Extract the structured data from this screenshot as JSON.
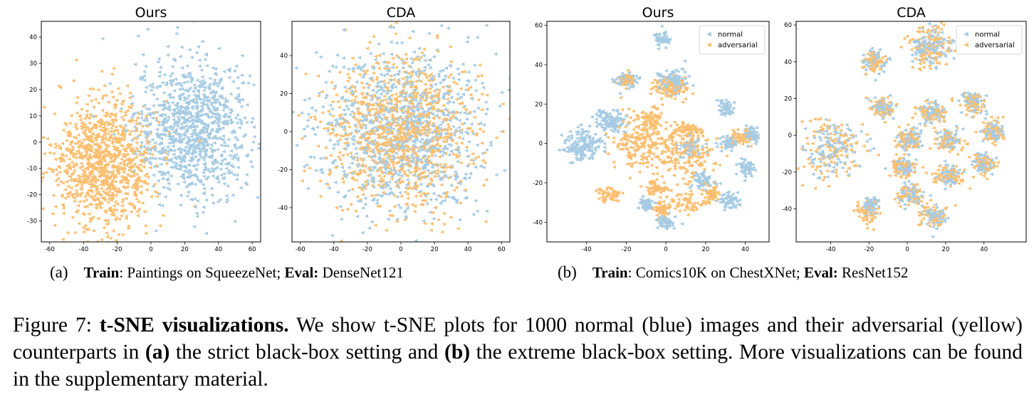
{
  "colors": {
    "normal": "#a6cbe3",
    "adversarial": "#fbbf70",
    "axes": "#000000"
  },
  "chart_data": [
    {
      "type": "scatter",
      "title": "Ours",
      "xlim": [
        -65,
        65
      ],
      "ylim": [
        -38,
        46
      ],
      "xticks": [
        "-60",
        "-40",
        "-20",
        "0",
        "20",
        "40",
        "60"
      ],
      "xtick_values": [
        -60,
        -40,
        -20,
        0,
        20,
        40,
        60
      ],
      "yticks": [
        "40",
        "30",
        "20",
        "10",
        "0",
        "-10",
        "-20",
        "-30"
      ],
      "ytick_values": [
        40,
        30,
        20,
        10,
        0,
        -10,
        -20,
        -30
      ],
      "legend": false,
      "series": [
        {
          "color_key": "normal",
          "n_points": 1000,
          "clusters": [
            {
              "cx": 25,
              "cy": 5,
              "sx": 17,
              "sy": 13,
              "w": 1
            }
          ]
        },
        {
          "color_key": "adversarial",
          "n_points": 1000,
          "clusters": [
            {
              "cx": -28,
              "cy": -8,
              "sx": 15,
              "sy": 12,
              "w": 1
            }
          ]
        }
      ]
    },
    {
      "type": "scatter",
      "title": "CDA",
      "xlim": [
        -65,
        65
      ],
      "ylim": [
        -58,
        58
      ],
      "xticks": [
        "-60",
        "-40",
        "-20",
        "0",
        "20",
        "40",
        "60"
      ],
      "xtick_values": [
        -60,
        -40,
        -20,
        0,
        20,
        40,
        60
      ],
      "yticks": [
        "40",
        "20",
        "0",
        "-20",
        "-40"
      ],
      "ytick_values": [
        40,
        20,
        0,
        -20,
        -40
      ],
      "legend": false,
      "series": [
        {
          "color_key": "normal",
          "n_points": 1000,
          "clusters": [
            {
              "cx": 0,
              "cy": 0,
              "sx": 26,
              "sy": 22,
              "w": 1
            }
          ]
        },
        {
          "color_key": "adversarial",
          "n_points": 1000,
          "clusters": [
            {
              "cx": 0,
              "cy": 0,
              "sx": 22,
              "sy": 20,
              "w": 1
            }
          ]
        }
      ]
    },
    {
      "type": "scatter",
      "title": "Ours",
      "xlim": [
        -60,
        52
      ],
      "ylim": [
        -50,
        62
      ],
      "xticks": [
        "-40",
        "-20",
        "0",
        "20",
        "40"
      ],
      "xtick_values": [
        -40,
        -20,
        0,
        20,
        40
      ],
      "yticks": [
        "60",
        "40",
        "20",
        "0",
        "-20",
        "-40"
      ],
      "ytick_values": [
        60,
        40,
        20,
        0,
        -20,
        -40
      ],
      "legend": true,
      "legend_position": "top-right",
      "legend_labels": [
        "normal",
        "adversarial"
      ],
      "series": [
        {
          "color_key": "normal",
          "n_points": 1000,
          "clusters": [
            {
              "cx": -42,
              "cy": -1,
              "sx": 5,
              "sy": 4,
              "w": 3
            },
            {
              "cx": -28,
              "cy": 11,
              "sx": 4,
              "sy": 3,
              "w": 2
            },
            {
              "cx": -20,
              "cy": 32,
              "sx": 3,
              "sy": 2,
              "w": 1
            },
            {
              "cx": -2,
              "cy": 53,
              "sx": 2,
              "sy": 2,
              "w": 1
            },
            {
              "cx": 30,
              "cy": 18,
              "sx": 2,
              "sy": 2,
              "w": 1
            },
            {
              "cx": 31,
              "cy": 0,
              "sx": 2,
              "sy": 2,
              "w": 1
            },
            {
              "cx": 43,
              "cy": 4,
              "sx": 2,
              "sy": 2,
              "w": 1
            },
            {
              "cx": 40,
              "cy": -12,
              "sx": 2,
              "sy": 2,
              "w": 1
            },
            {
              "cx": 31,
              "cy": -29,
              "sx": 3,
              "sy": 2,
              "w": 1
            },
            {
              "cx": 19,
              "cy": -19,
              "sx": 3,
              "sy": 2,
              "w": 1
            },
            {
              "cx": 0,
              "cy": -40,
              "sx": 2,
              "sy": 2,
              "w": 1
            },
            {
              "cx": -10,
              "cy": -31,
              "sx": 2,
              "sy": 2,
              "w": 1
            },
            {
              "cx": 4,
              "cy": 32,
              "sx": 4,
              "sy": 3,
              "w": 2
            },
            {
              "cx": 12,
              "cy": -2,
              "sx": 3,
              "sy": 3,
              "w": 1
            }
          ]
        },
        {
          "color_key": "adversarial",
          "n_points": 1000,
          "clusters": [
            {
              "cx": -12,
              "cy": 1,
              "sx": 8,
              "sy": 7,
              "w": 4
            },
            {
              "cx": 12,
              "cy": -6,
              "sx": 7,
              "sy": 7,
              "w": 3
            },
            {
              "cx": 2,
              "cy": 28,
              "sx": 4,
              "sy": 3,
              "w": 2
            },
            {
              "cx": -29,
              "cy": -26,
              "sx": 3,
              "sy": 2,
              "w": 1
            },
            {
              "cx": -5,
              "cy": -23,
              "sx": 3,
              "sy": 2,
              "w": 1
            },
            {
              "cx": 10,
              "cy": -30,
              "sx": 4,
              "sy": 3,
              "w": 1
            },
            {
              "cx": -8,
              "cy": 13,
              "sx": 3,
              "sy": 2,
              "w": 1
            },
            {
              "cx": 12,
              "cy": 7,
              "sx": 3,
              "sy": 2,
              "w": 1
            },
            {
              "cx": -2,
              "cy": -33,
              "sx": 2,
              "sy": 2,
              "w": 1
            },
            {
              "cx": 38,
              "cy": 3,
              "sx": 3,
              "sy": 2,
              "w": 1
            },
            {
              "cx": -20,
              "cy": 32,
              "sx": 2,
              "sy": 2,
              "w": 1
            },
            {
              "cx": 23,
              "cy": -26,
              "sx": 2,
              "sy": 2,
              "w": 1
            }
          ]
        }
      ]
    },
    {
      "type": "scatter",
      "title": "CDA",
      "xlim": [
        -58,
        62
      ],
      "ylim": [
        -58,
        62
      ],
      "xticks": [
        "-40",
        "-20",
        "0",
        "20",
        "40"
      ],
      "xtick_values": [
        -40,
        -20,
        0,
        20,
        40
      ],
      "yticks": [
        "60",
        "40",
        "20",
        "0",
        "-20",
        "-40"
      ],
      "ytick_values": [
        60,
        40,
        20,
        0,
        -20,
        -40
      ],
      "legend": true,
      "legend_position": "top-right",
      "legend_labels": [
        "normal",
        "adversarial"
      ],
      "series": [
        {
          "color_key": "normal",
          "n_points": 1000,
          "clusters": [
            {
              "cx": -40,
              "cy": -8,
              "sx": 8,
              "sy": 8,
              "w": 2
            },
            {
              "cx": -17,
              "cy": 40,
              "sx": 3,
              "sy": 3,
              "w": 1
            },
            {
              "cx": 12,
              "cy": 48,
              "sx": 5,
              "sy": 5,
              "w": 2
            },
            {
              "cx": -13,
              "cy": 15,
              "sx": 3,
              "sy": 3,
              "w": 1
            },
            {
              "cx": 13,
              "cy": 12,
              "sx": 3,
              "sy": 3,
              "w": 1
            },
            {
              "cx": 34,
              "cy": 18,
              "sx": 3,
              "sy": 3,
              "w": 1
            },
            {
              "cx": 1,
              "cy": -2,
              "sx": 3,
              "sy": 3,
              "w": 1
            },
            {
              "cx": 22,
              "cy": -3,
              "sx": 3,
              "sy": 3,
              "w": 1
            },
            {
              "cx": 44,
              "cy": 2,
              "sx": 3,
              "sy": 3,
              "w": 1
            },
            {
              "cx": -2,
              "cy": -17,
              "sx": 3,
              "sy": 3,
              "w": 1
            },
            {
              "cx": 21,
              "cy": -22,
              "sx": 3,
              "sy": 3,
              "w": 1
            },
            {
              "cx": 40,
              "cy": -16,
              "sx": 3,
              "sy": 3,
              "w": 1
            },
            {
              "cx": 1,
              "cy": -32,
              "sx": 3,
              "sy": 3,
              "w": 1
            },
            {
              "cx": -20,
              "cy": -38,
              "sx": 2,
              "sy": 2,
              "w": 1
            },
            {
              "cx": 14,
              "cy": -44,
              "sx": 3,
              "sy": 3,
              "w": 1
            }
          ]
        },
        {
          "color_key": "adversarial",
          "n_points": 1000,
          "clusters": [
            {
              "cx": -40,
              "cy": -8,
              "sx": 9,
              "sy": 9,
              "w": 2
            },
            {
              "cx": -17,
              "cy": 40,
              "sx": 3,
              "sy": 3,
              "w": 1
            },
            {
              "cx": 12,
              "cy": 48,
              "sx": 6,
              "sy": 6,
              "w": 2
            },
            {
              "cx": -13,
              "cy": 15,
              "sx": 4,
              "sy": 3,
              "w": 1
            },
            {
              "cx": 13,
              "cy": 12,
              "sx": 4,
              "sy": 3,
              "w": 1
            },
            {
              "cx": 34,
              "cy": 18,
              "sx": 3,
              "sy": 3,
              "w": 1
            },
            {
              "cx": 1,
              "cy": -2,
              "sx": 4,
              "sy": 3,
              "w": 1
            },
            {
              "cx": 22,
              "cy": -3,
              "sx": 4,
              "sy": 3,
              "w": 1
            },
            {
              "cx": 44,
              "cy": 2,
              "sx": 3,
              "sy": 3,
              "w": 1
            },
            {
              "cx": -2,
              "cy": -17,
              "sx": 4,
              "sy": 3,
              "w": 1
            },
            {
              "cx": 21,
              "cy": -22,
              "sx": 4,
              "sy": 3,
              "w": 1
            },
            {
              "cx": 40,
              "cy": -16,
              "sx": 3,
              "sy": 3,
              "w": 1
            },
            {
              "cx": 1,
              "cy": -32,
              "sx": 4,
              "sy": 3,
              "w": 1
            },
            {
              "cx": -20,
              "cy": -42,
              "sx": 3,
              "sy": 3,
              "w": 1
            },
            {
              "cx": 14,
              "cy": -44,
              "sx": 4,
              "sy": 3,
              "w": 1
            }
          ]
        }
      ]
    }
  ],
  "subcaptions": {
    "a": {
      "label": "(a)",
      "train_key": "Train",
      "train_val": ": Paintings on SqueezeNet; ",
      "eval_key": "Eval:",
      "eval_val": " DenseNet121"
    },
    "b": {
      "label": "(b)",
      "train_key": "Train",
      "train_val": ": Comics10K on ChestXNet; ",
      "eval_key": "Eval:",
      "eval_val": " ResNet152"
    }
  },
  "caption": {
    "prefix": "Figure 7: ",
    "bold_title": "t-SNE visualizations.",
    "text1": " We show t-SNE plots for 1000 normal (blue) images and their adversarial (yellow) counterparts in ",
    "bold_a": "(a)",
    "text2": " the strict black-box setting and ",
    "bold_b": "(b)",
    "text3": " the extreme black-box setting. More visualizations can be found in the supplementary material."
  }
}
